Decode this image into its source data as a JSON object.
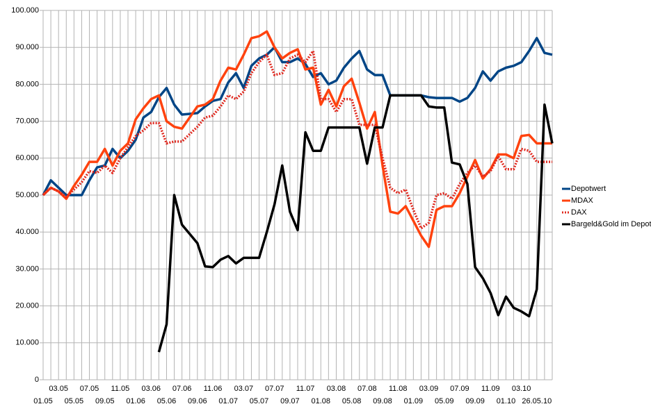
{
  "chart_data": {
    "type": "line",
    "categories": [
      "01.05",
      null,
      "03.05",
      null,
      "05.05",
      null,
      "07.05",
      null,
      "09.05",
      null,
      "11.05",
      null,
      "01.06",
      null,
      "03.06",
      null,
      "05.06",
      null,
      "07.06",
      null,
      "09.06",
      null,
      "11.06",
      null,
      "01.07",
      null,
      "03.07",
      null,
      "05.07",
      null,
      "07.07",
      null,
      "09.07",
      null,
      "11.07",
      null,
      "01.08",
      null,
      "03.08",
      null,
      "05.08",
      null,
      "07.08",
      null,
      "09.08",
      null,
      "11.08",
      null,
      "01.09",
      null,
      "03.09",
      null,
      "05.09",
      null,
      "07.09",
      null,
      "09.09",
      null,
      "11.09",
      null,
      "01.10",
      null,
      "03.10",
      null,
      "26.05.10",
      null,
      null
    ],
    "series": [
      {
        "name": "Depotwert",
        "color": "#004586",
        "style": "solid",
        "values": [
          50000,
          54000,
          52000,
          50000,
          50000,
          50000,
          54000,
          57500,
          58000,
          62500,
          60000,
          62000,
          65000,
          71000,
          72500,
          76500,
          79000,
          74500,
          71800,
          72000,
          72200,
          74000,
          75500,
          76000,
          80500,
          83000,
          79000,
          85000,
          87000,
          88000,
          90000,
          86000,
          86000,
          87000,
          85500,
          82000,
          83000,
          80000,
          81000,
          84500,
          87000,
          89000,
          84000,
          82500,
          82500,
          77000,
          77000,
          77000,
          77000,
          77000,
          76500,
          76300,
          76300,
          76300,
          75300,
          76300,
          79000,
          83500,
          81000,
          83500,
          84500,
          85000,
          86000,
          89000,
          92500,
          88500,
          88000
        ]
      },
      {
        "name": "MDAX",
        "color": "#ff420e",
        "style": "solid",
        "values": [
          50000,
          52000,
          51000,
          49000,
          52500,
          55500,
          59000,
          59000,
          62500,
          58000,
          62000,
          64000,
          70500,
          73500,
          76000,
          77000,
          70000,
          68500,
          68000,
          71000,
          74000,
          74500,
          76000,
          81000,
          84500,
          84000,
          88000,
          92500,
          93000,
          94300,
          90000,
          87000,
          88500,
          89500,
          84000,
          84500,
          74500,
          78500,
          74000,
          79500,
          81500,
          75000,
          68000,
          72500,
          58000,
          45500,
          45000,
          47000,
          43000,
          39000,
          36000,
          46000,
          47000,
          47000,
          50500,
          55000,
          59500,
          54500,
          57000,
          61000,
          61000,
          60000,
          66000,
          66300,
          64000,
          64000,
          64000
        ]
      },
      {
        "name": "DAX",
        "color": "#e0281e",
        "style": "dotted",
        "values": [
          50000,
          52000,
          51000,
          49500,
          51500,
          53500,
          56500,
          56000,
          58000,
          56000,
          60000,
          63000,
          66000,
          67500,
          69500,
          69500,
          64000,
          64500,
          64500,
          66500,
          68500,
          71000,
          71500,
          74000,
          77000,
          76000,
          78000,
          83000,
          86000,
          88000,
          82500,
          83000,
          87000,
          88000,
          86000,
          89000,
          76000,
          76000,
          72500,
          76000,
          76000,
          69000,
          69000,
          69000,
          60000,
          52000,
          50500,
          51500,
          46000,
          41000,
          42500,
          50000,
          50500,
          49000,
          53000,
          56000,
          58000,
          55000,
          56500,
          60500,
          57000,
          57000,
          62500,
          62000,
          59000,
          59000,
          59000
        ]
      },
      {
        "name": "Bargeld&Gold im Depot",
        "color": "#000000",
        "style": "solid",
        "values": [
          null,
          null,
          null,
          null,
          null,
          null,
          null,
          null,
          null,
          null,
          null,
          null,
          null,
          null,
          null,
          7500,
          15000,
          50000,
          42000,
          39500,
          37000,
          30700,
          30500,
          32500,
          33500,
          31500,
          33000,
          33000,
          33000,
          40000,
          47500,
          58000,
          45500,
          40500,
          67000,
          62000,
          62000,
          68300,
          68300,
          68300,
          68300,
          68300,
          58500,
          68300,
          68300,
          77000,
          77000,
          77000,
          77000,
          77000,
          74000,
          73700,
          73700,
          58800,
          58300,
          53000,
          30500,
          27500,
          23500,
          17500,
          22500,
          19500,
          18500,
          17200,
          24500,
          74500,
          64000
        ]
      }
    ],
    "ylim": [
      0,
      100000
    ],
    "yticks": [
      {
        "value": 0,
        "label": "0"
      },
      {
        "value": 10000,
        "label": "10.000"
      },
      {
        "value": 20000,
        "label": "20.000"
      },
      {
        "value": 30000,
        "label": "30.000"
      },
      {
        "value": 40000,
        "label": "40.000"
      },
      {
        "value": 50000,
        "label": "50.000"
      },
      {
        "value": 60000,
        "label": "60.000"
      },
      {
        "value": 70000,
        "label": "70.000"
      },
      {
        "value": 80000,
        "label": "80.000"
      },
      {
        "value": 90000,
        "label": "90.000"
      },
      {
        "value": 100000,
        "label": "100.000"
      }
    ],
    "grid": true,
    "legend": "right"
  }
}
